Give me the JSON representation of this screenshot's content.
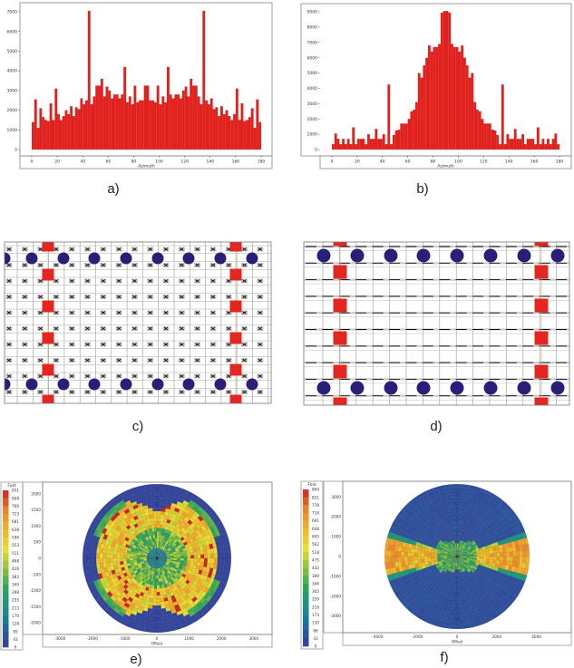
{
  "captions": [
    "a)",
    "b)",
    "c)",
    "d)",
    "e)",
    "f)"
  ],
  "colors": {
    "bars": "#e0211d",
    "source_marker": "#2a1f78",
    "square_marker": "#e3261f"
  },
  "chart_data": [
    {
      "type": "bar",
      "panel": "a",
      "xlabel": "Azimuth",
      "xlim": [
        0,
        180
      ],
      "ylim": [
        0,
        7000
      ],
      "bin_width_deg": 2,
      "xticks": [
        0,
        20,
        40,
        60,
        80,
        100,
        120,
        140,
        160,
        180
      ],
      "yticks": [
        0,
        1000,
        2000,
        3000,
        4000,
        5000,
        6000,
        7000
      ],
      "values": [
        1400,
        2550,
        1100,
        2100,
        1650,
        1500,
        1450,
        2350,
        1500,
        3100,
        1800,
        1500,
        1700,
        2000,
        1800,
        2200,
        1700,
        2150,
        2050,
        2600,
        2300,
        2500,
        7050,
        2300,
        2700,
        3250,
        3250,
        3600,
        2700,
        3200,
        3000,
        2600,
        2800,
        2800,
        2600,
        2800,
        4200,
        2400,
        2700,
        2300,
        3250,
        2400,
        2500,
        2500,
        3250,
        3250,
        2500,
        2500,
        2400,
        3250,
        2300,
        2700,
        2400,
        4200,
        2800,
        2600,
        2800,
        2800,
        2600,
        3000,
        3200,
        2700,
        3600,
        3250,
        3250,
        2700,
        2300,
        7050,
        2500,
        2300,
        2600,
        2050,
        2150,
        1700,
        2200,
        1800,
        2000,
        1700,
        1500,
        1800,
        3100,
        1500,
        2350,
        1450,
        1500,
        1650,
        2100,
        1100,
        2550,
        1400
      ]
    },
    {
      "type": "bar",
      "panel": "b",
      "xlabel": "Azimuth",
      "xlim": [
        0,
        180
      ],
      "ylim": [
        0,
        9000
      ],
      "bin_width_deg": 2,
      "xticks": [
        0,
        20,
        40,
        60,
        80,
        100,
        120,
        140,
        160,
        180
      ],
      "yticks": [
        0,
        1000,
        2000,
        3000,
        4000,
        5000,
        6000,
        7000,
        8000,
        9000
      ],
      "values": [
        350,
        1050,
        700,
        350,
        700,
        350,
        700,
        350,
        1450,
        350,
        700,
        700,
        700,
        350,
        1000,
        700,
        700,
        1350,
        700,
        700,
        1000,
        350,
        4250,
        350,
        950,
        1250,
        1300,
        1700,
        1700,
        1700,
        2000,
        2500,
        2600,
        3100,
        5000,
        4700,
        5500,
        6000,
        6800,
        6400,
        6700,
        6700,
        6900,
        8950,
        9050,
        9050,
        8950,
        6900,
        6700,
        6700,
        6400,
        6800,
        6000,
        5500,
        4700,
        5000,
        3100,
        2600,
        2500,
        2000,
        1700,
        1700,
        1700,
        1300,
        1250,
        950,
        350,
        4250,
        350,
        1000,
        700,
        700,
        1350,
        700,
        700,
        1000,
        350,
        700,
        700,
        700,
        350,
        1450,
        350,
        700,
        350,
        700,
        350,
        700,
        1050,
        350
      ]
    },
    {
      "type": "heatmap",
      "panel": "e",
      "projection": "polar",
      "legend_title": "Fold",
      "legend_ticks": [
        851,
        808,
        766,
        723,
        681,
        638,
        596,
        553,
        511,
        468,
        426,
        383,
        340,
        298,
        255,
        213,
        170,
        128,
        85,
        43,
        0
      ],
      "colormap": [
        "#3a3a9c",
        "#1e6aa0",
        "#1a8f8a",
        "#2ea45a",
        "#8cc43c",
        "#e8e032",
        "#f0b428",
        "#e8842c",
        "#d02020"
      ],
      "xlabel": "Offset",
      "xticks": [
        -3000,
        -2000,
        -1000,
        0,
        1000,
        2000,
        3000
      ],
      "yticks": [
        2000,
        1500,
        1000,
        500,
        0,
        -500,
        -1000,
        -1500,
        -2000
      ],
      "max_offset": 2300
    },
    {
      "type": "heatmap",
      "panel": "f",
      "projection": "polar",
      "legend_title": "Fold",
      "legend_ticks": [
        864,
        821,
        778,
        734,
        691,
        648,
        605,
        562,
        518,
        475,
        432,
        389,
        346,
        302,
        259,
        216,
        173,
        130,
        86,
        43,
        0
      ],
      "colormap": [
        "#3a3a9c",
        "#1e6aa0",
        "#1a8f8a",
        "#2ea45a",
        "#8cc43c",
        "#e8e032",
        "#f0b428",
        "#e8842c",
        "#d02020"
      ],
      "xlabel": "Offset",
      "xticks": [
        -4000,
        -2000,
        0,
        2000,
        4000
      ],
      "yticks": [
        3000,
        2000,
        1000,
        0,
        -1000,
        -2000,
        -3000
      ],
      "max_offset": 3650
    }
  ]
}
